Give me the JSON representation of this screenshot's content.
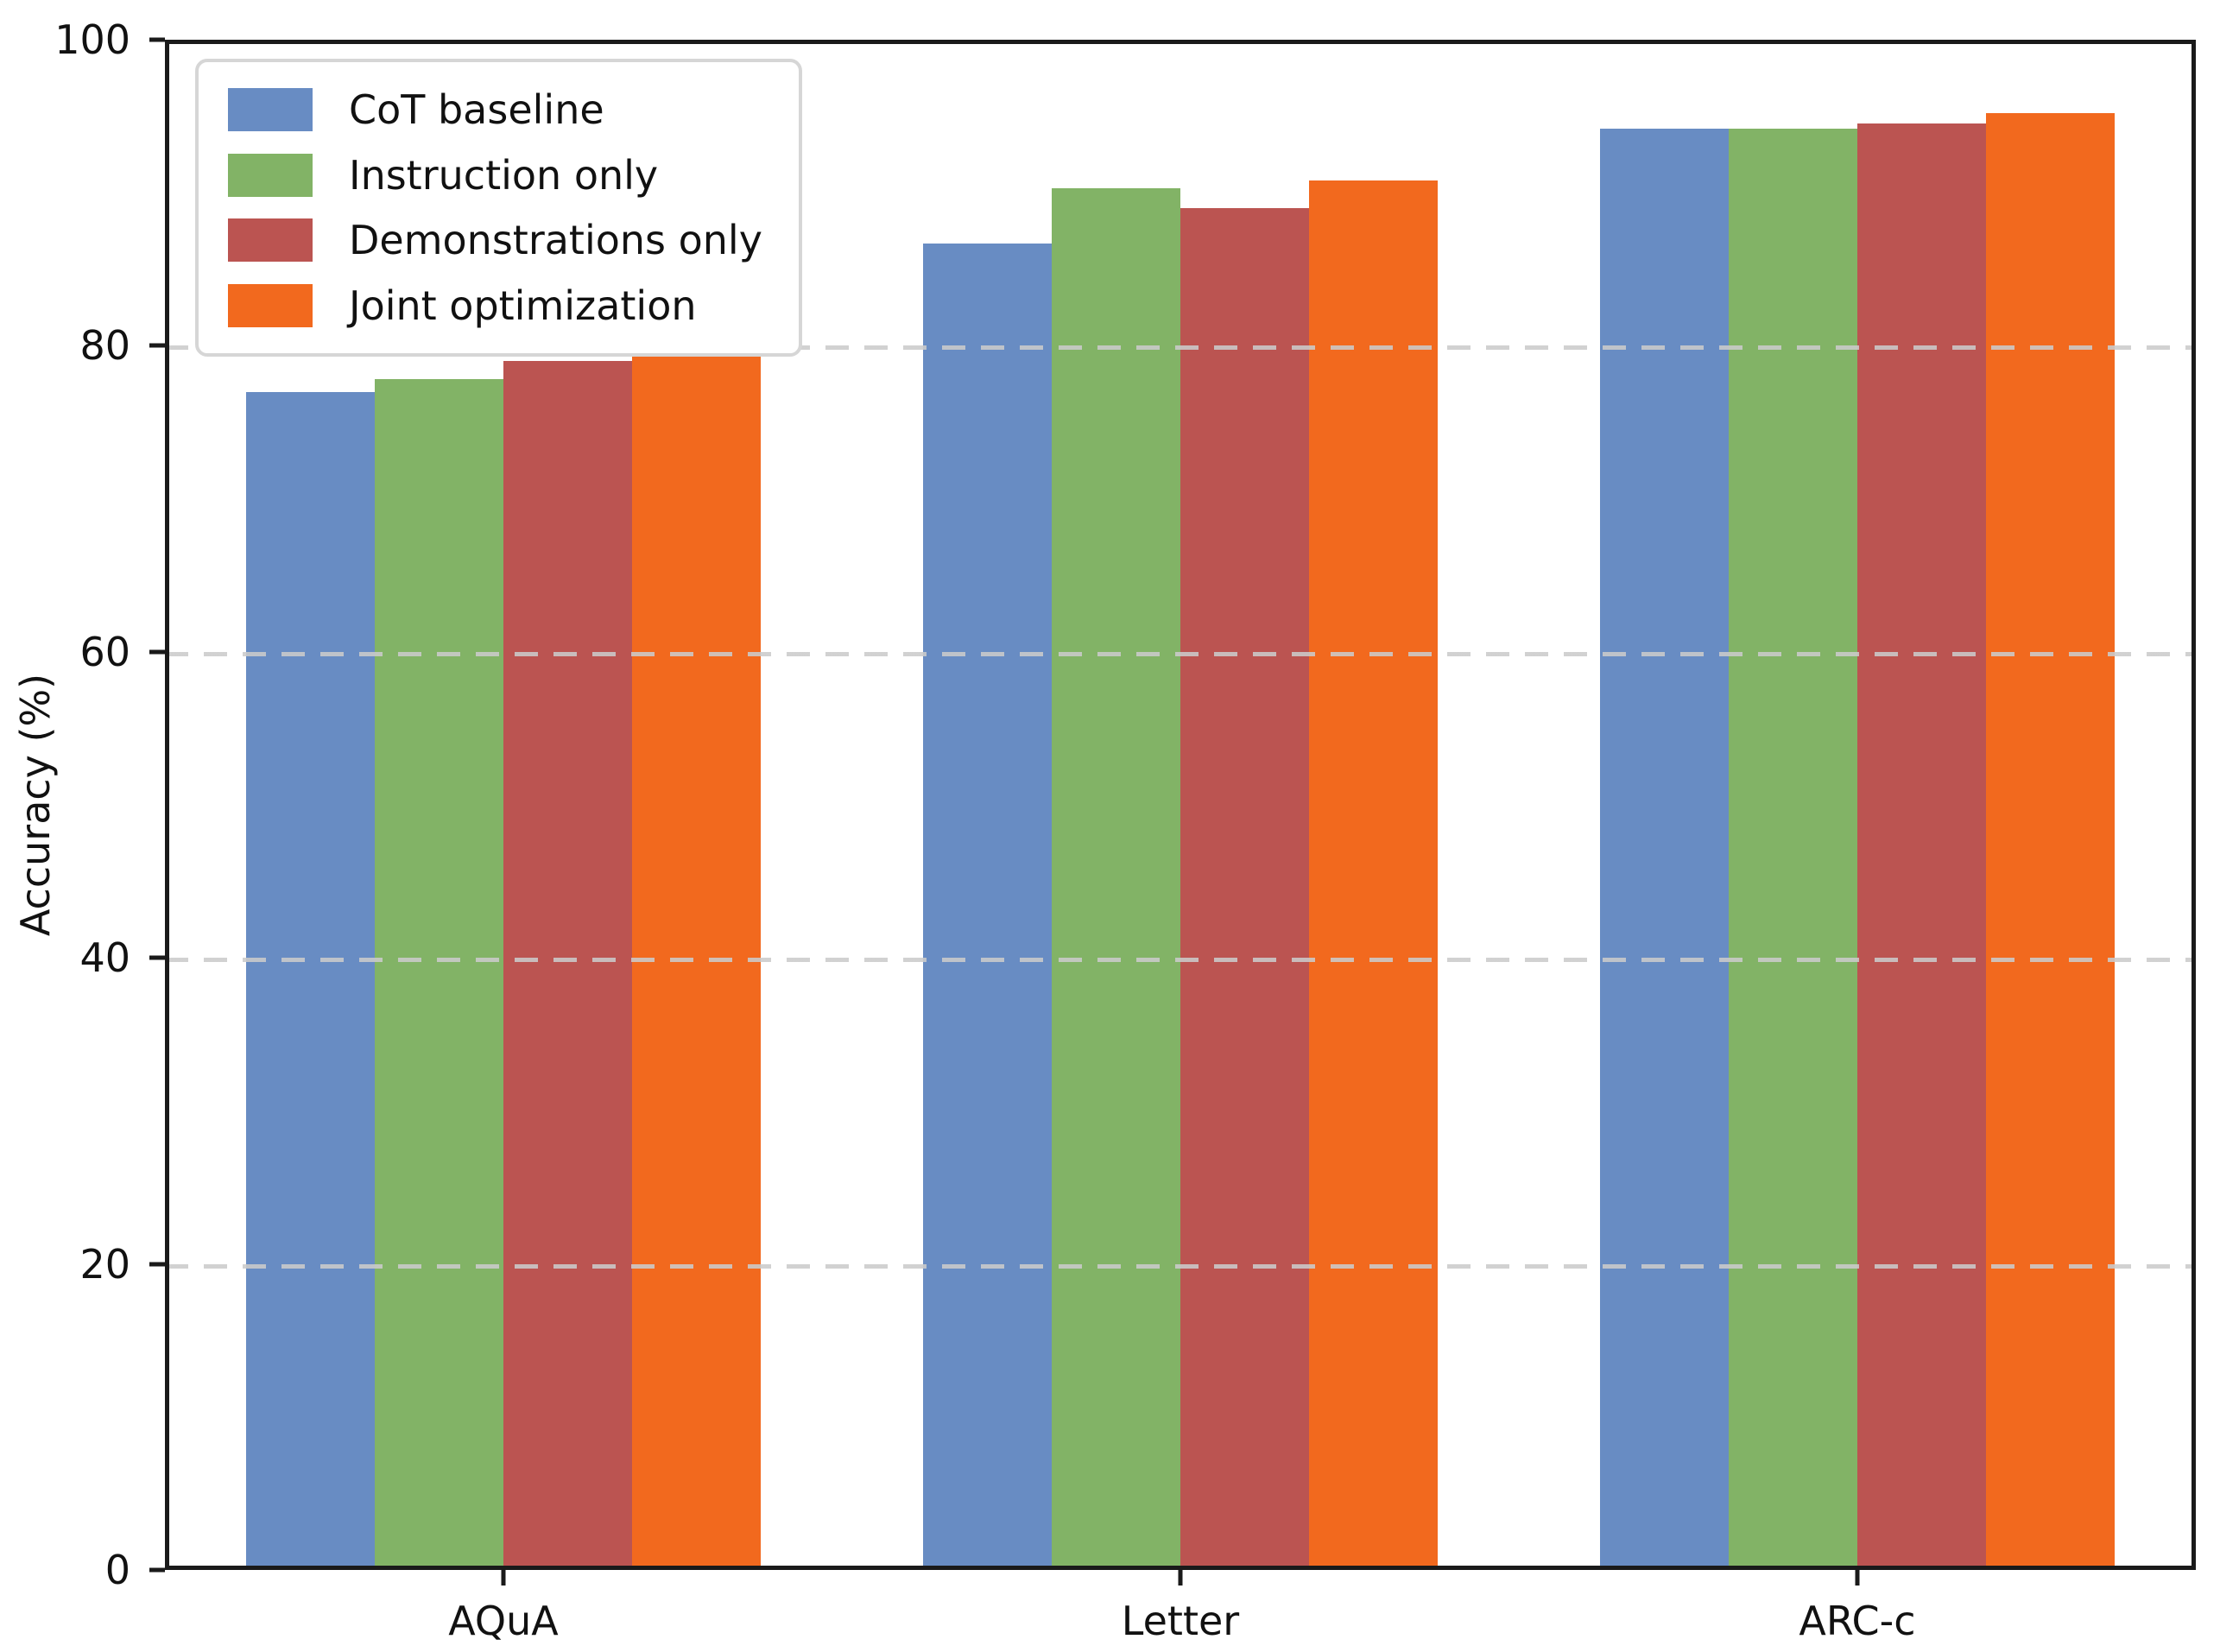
{
  "chart_data": {
    "type": "bar",
    "title": "",
    "xlabel": "",
    "ylabel": "Accuracy (%)",
    "categories": [
      "AQuA",
      "Letter",
      "ARC-c"
    ],
    "series": [
      {
        "name": "CoT baseline",
        "color": "#688cc3",
        "values": [
          77.0,
          86.7,
          94.2
        ]
      },
      {
        "name": "Instruction only",
        "color": "#82b366",
        "values": [
          77.8,
          90.3,
          94.2
        ]
      },
      {
        "name": "Demonstrations only",
        "color": "#bb5451",
        "values": [
          79.0,
          89.0,
          94.5
        ]
      },
      {
        "name": "Joint optimization",
        "color": "#f2691e",
        "values": [
          79.9,
          90.8,
          95.2
        ]
      }
    ],
    "ylim": [
      0,
      100
    ],
    "yticks": [
      0,
      20,
      40,
      60,
      80,
      100
    ],
    "grid": {
      "axis": "y",
      "style": "dashed",
      "color": "#cbcbcb",
      "above_bars": true
    },
    "legend_position": "upper-left",
    "axis_color": "#1a1a1a",
    "bar_width_data_units": 0.19,
    "group_positions": [
      0,
      1,
      2
    ],
    "xlim": [
      -0.5,
      2.5
    ]
  }
}
